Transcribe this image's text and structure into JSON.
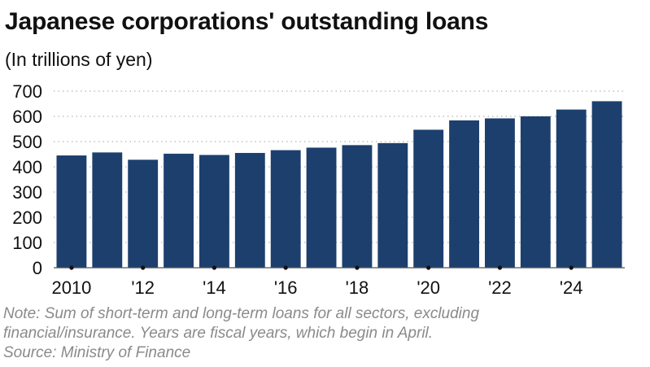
{
  "chart_data": {
    "type": "bar",
    "title": "Japanese corporations' outstanding loans",
    "subtitle": "(In trillions of yen)",
    "categories": [
      "2010",
      "2011",
      "2012",
      "2013",
      "2014",
      "2015",
      "2016",
      "2017",
      "2018",
      "2019",
      "2020",
      "2021",
      "2022",
      "2023",
      "2024",
      "2025"
    ],
    "x_tick_labels": [
      "2010",
      "'12",
      "'14",
      "'16",
      "'18",
      "'20",
      "'22",
      "'24"
    ],
    "values": [
      445,
      457,
      428,
      452,
      447,
      455,
      466,
      476,
      486,
      494,
      547,
      584,
      592,
      600,
      627,
      660
    ],
    "yticks": [
      0,
      100,
      200,
      300,
      400,
      500,
      600,
      700
    ],
    "ylim": [
      0,
      700
    ],
    "xlabel": "",
    "ylabel": "",
    "grid": "horizontal dotted",
    "bar_color": "#1c3f6e"
  },
  "notes": {
    "line1": "Note: Sum of short-term and long-term loans for all sectors, excluding",
    "line2": "financial/insurance. Years are fiscal years, which begin in April.",
    "line3": "Source: Ministry of Finance"
  }
}
